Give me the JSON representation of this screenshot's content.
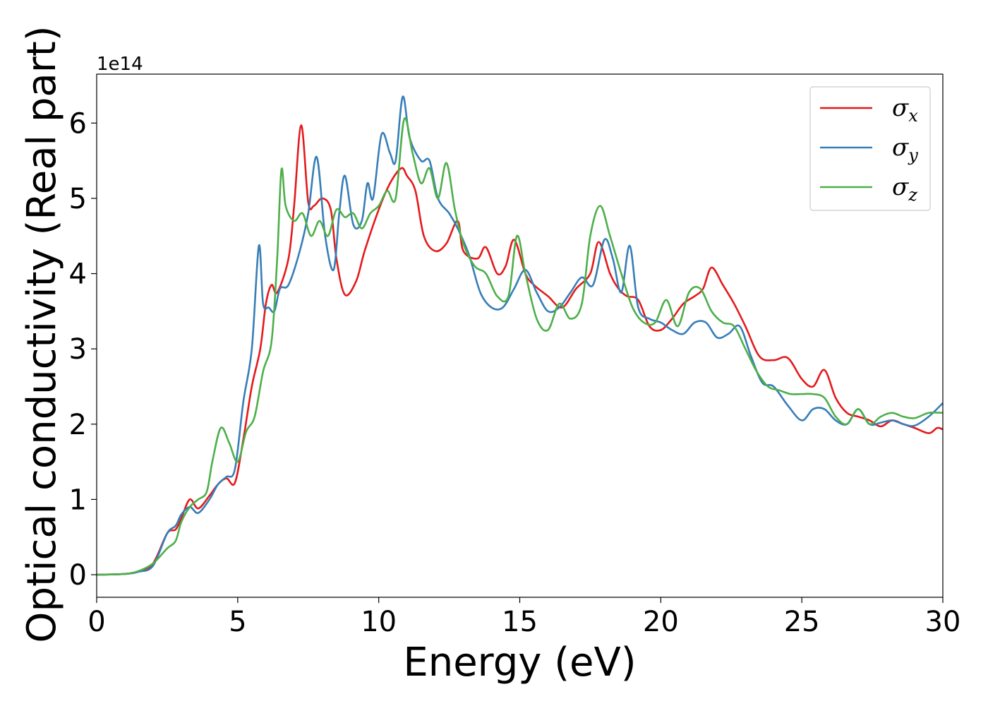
{
  "chart_data": {
    "type": "line",
    "title": "",
    "xlabel": "Energy (eV)",
    "ylabel": "Optical conductivity (Real part)",
    "y_offset_label": "1e14",
    "xlim": [
      0,
      30
    ],
    "ylim": [
      -0.3,
      6.65
    ],
    "xticks": [
      0,
      5,
      10,
      15,
      20,
      25,
      30
    ],
    "yticks": [
      0,
      1,
      2,
      3,
      4,
      5,
      6
    ],
    "grid": false,
    "legend_position": "top-right",
    "series": [
      {
        "name": "σx",
        "legend_base": "σ",
        "legend_sub": "x",
        "color": "#e41a1c",
        "x": [
          0,
          1,
          1.5,
          2.0,
          2.5,
          2.8,
          3.0,
          3.3,
          3.6,
          4.0,
          4.3,
          4.6,
          4.9,
          5.2,
          5.5,
          5.8,
          6.0,
          6.2,
          6.4,
          6.8,
          7.0,
          7.25,
          7.5,
          7.7,
          8.0,
          8.3,
          8.5,
          8.8,
          9.2,
          9.5,
          10.0,
          10.4,
          10.8,
          11.0,
          11.3,
          11.6,
          12.0,
          12.4,
          12.8,
          13.0,
          13.5,
          13.8,
          14.2,
          14.5,
          14.8,
          15.2,
          15.5,
          16.0,
          16.5,
          17.0,
          17.5,
          17.8,
          18.2,
          18.5,
          18.8,
          19.2,
          19.6,
          20.0,
          20.4,
          20.8,
          21.2,
          21.5,
          21.8,
          22.2,
          22.6,
          23.0,
          23.5,
          24.0,
          24.5,
          25.0,
          25.4,
          25.8,
          26.2,
          26.6,
          27.0,
          27.4,
          27.8,
          28.2,
          28.6,
          29.0,
          29.5,
          29.8,
          30.0
        ],
        "y": [
          0.0,
          0.01,
          0.05,
          0.15,
          0.55,
          0.6,
          0.75,
          1.0,
          0.88,
          1.05,
          1.2,
          1.28,
          1.22,
          1.8,
          2.5,
          3.0,
          3.6,
          3.85,
          3.75,
          4.2,
          4.9,
          5.97,
          4.95,
          4.9,
          5.0,
          4.85,
          4.2,
          3.72,
          3.9,
          4.3,
          4.85,
          5.2,
          5.4,
          5.3,
          5.1,
          4.5,
          4.3,
          4.4,
          4.7,
          4.3,
          4.2,
          4.35,
          4.0,
          4.1,
          4.45,
          4.0,
          3.85,
          3.7,
          3.55,
          3.8,
          4.0,
          4.42,
          4.0,
          3.8,
          3.7,
          3.65,
          3.3,
          3.25,
          3.4,
          3.6,
          3.7,
          3.8,
          4.08,
          3.85,
          3.6,
          3.3,
          2.9,
          2.85,
          2.88,
          2.6,
          2.5,
          2.72,
          2.35,
          2.15,
          2.1,
          2.05,
          1.97,
          2.05,
          2.0,
          1.95,
          1.88,
          1.95,
          1.93
        ]
      },
      {
        "name": "σy",
        "legend_base": "σ",
        "legend_sub": "y",
        "color": "#377eb8",
        "x": [
          0,
          1,
          1.5,
          2.0,
          2.5,
          2.8,
          3.0,
          3.3,
          3.6,
          4.0,
          4.3,
          4.6,
          4.9,
          5.2,
          5.5,
          5.75,
          5.9,
          6.1,
          6.3,
          6.5,
          6.8,
          7.2,
          7.5,
          7.8,
          8.1,
          8.4,
          8.6,
          8.8,
          9.1,
          9.4,
          9.6,
          9.8,
          10.1,
          10.4,
          10.6,
          10.85,
          11.1,
          11.5,
          11.8,
          12.1,
          12.5,
          12.8,
          13.2,
          13.6,
          14.0,
          14.4,
          14.8,
          15.2,
          15.6,
          16.0,
          16.4,
          16.8,
          17.2,
          17.6,
          18.0,
          18.3,
          18.6,
          18.9,
          19.2,
          19.6,
          20.0,
          20.4,
          20.8,
          21.2,
          21.6,
          22.0,
          22.4,
          22.8,
          23.2,
          23.6,
          24.0,
          24.5,
          25.0,
          25.4,
          25.8,
          26.2,
          26.6,
          27.0,
          27.4,
          27.8,
          28.2,
          28.6,
          29.0,
          29.5,
          30.0
        ],
        "y": [
          0.0,
          0.01,
          0.04,
          0.12,
          0.55,
          0.65,
          0.8,
          0.9,
          0.82,
          1.0,
          1.2,
          1.3,
          1.4,
          2.3,
          3.0,
          4.37,
          3.6,
          3.55,
          3.5,
          3.8,
          3.85,
          4.3,
          4.8,
          5.55,
          4.5,
          4.05,
          4.8,
          5.3,
          4.65,
          4.7,
          5.2,
          5.0,
          5.85,
          5.6,
          5.5,
          6.35,
          5.8,
          5.5,
          5.5,
          5.0,
          4.8,
          4.6,
          4.25,
          3.75,
          3.55,
          3.55,
          3.8,
          4.05,
          3.75,
          3.5,
          3.55,
          3.75,
          3.95,
          3.85,
          4.45,
          4.2,
          3.75,
          4.37,
          3.55,
          3.4,
          3.35,
          3.25,
          3.2,
          3.35,
          3.35,
          3.15,
          3.2,
          3.3,
          2.9,
          2.55,
          2.5,
          2.25,
          2.05,
          2.2,
          2.2,
          2.05,
          2.0,
          2.2,
          2.0,
          2.02,
          2.05,
          2.0,
          1.98,
          2.1,
          2.28
        ]
      },
      {
        "name": "σz",
        "legend_base": "σ",
        "legend_sub": "z",
        "color": "#4daf4a",
        "x": [
          0,
          1,
          1.5,
          2.0,
          2.5,
          2.8,
          3.0,
          3.3,
          3.6,
          3.9,
          4.1,
          4.4,
          4.7,
          5.0,
          5.3,
          5.6,
          5.9,
          6.2,
          6.4,
          6.55,
          6.7,
          7.0,
          7.3,
          7.6,
          7.9,
          8.2,
          8.5,
          8.8,
          9.1,
          9.4,
          9.7,
          10.0,
          10.3,
          10.6,
          10.9,
          11.2,
          11.5,
          11.8,
          12.1,
          12.4,
          12.7,
          13.0,
          13.4,
          13.8,
          14.2,
          14.6,
          14.9,
          15.2,
          15.6,
          16.0,
          16.4,
          16.8,
          17.2,
          17.5,
          17.85,
          18.2,
          18.6,
          19.0,
          19.4,
          19.8,
          20.2,
          20.6,
          21.0,
          21.4,
          21.8,
          22.2,
          22.6,
          23.0,
          23.4,
          23.8,
          24.2,
          24.6,
          25.0,
          25.4,
          25.8,
          26.2,
          26.6,
          27.0,
          27.4,
          27.8,
          28.2,
          28.6,
          29.0,
          29.5,
          30.0
        ],
        "y": [
          0.0,
          0.01,
          0.05,
          0.15,
          0.35,
          0.45,
          0.7,
          0.9,
          1.0,
          1.1,
          1.5,
          1.95,
          1.75,
          1.5,
          1.9,
          2.1,
          2.7,
          3.1,
          4.2,
          5.38,
          4.9,
          4.7,
          4.8,
          4.5,
          4.7,
          4.5,
          4.85,
          4.75,
          4.8,
          4.6,
          4.8,
          4.9,
          5.1,
          5.0,
          6.05,
          5.6,
          5.2,
          5.4,
          5.0,
          5.47,
          4.85,
          4.4,
          4.1,
          4.0,
          3.7,
          3.7,
          4.5,
          4.0,
          3.4,
          3.25,
          3.6,
          3.4,
          3.6,
          4.5,
          4.9,
          4.5,
          4.0,
          3.55,
          3.35,
          3.35,
          3.65,
          3.3,
          3.75,
          3.8,
          3.5,
          3.35,
          3.3,
          3.0,
          2.7,
          2.5,
          2.45,
          2.4,
          2.4,
          2.4,
          2.35,
          2.1,
          2.0,
          2.2,
          2.0,
          2.1,
          2.15,
          2.1,
          2.08,
          2.15,
          2.15
        ]
      }
    ]
  }
}
